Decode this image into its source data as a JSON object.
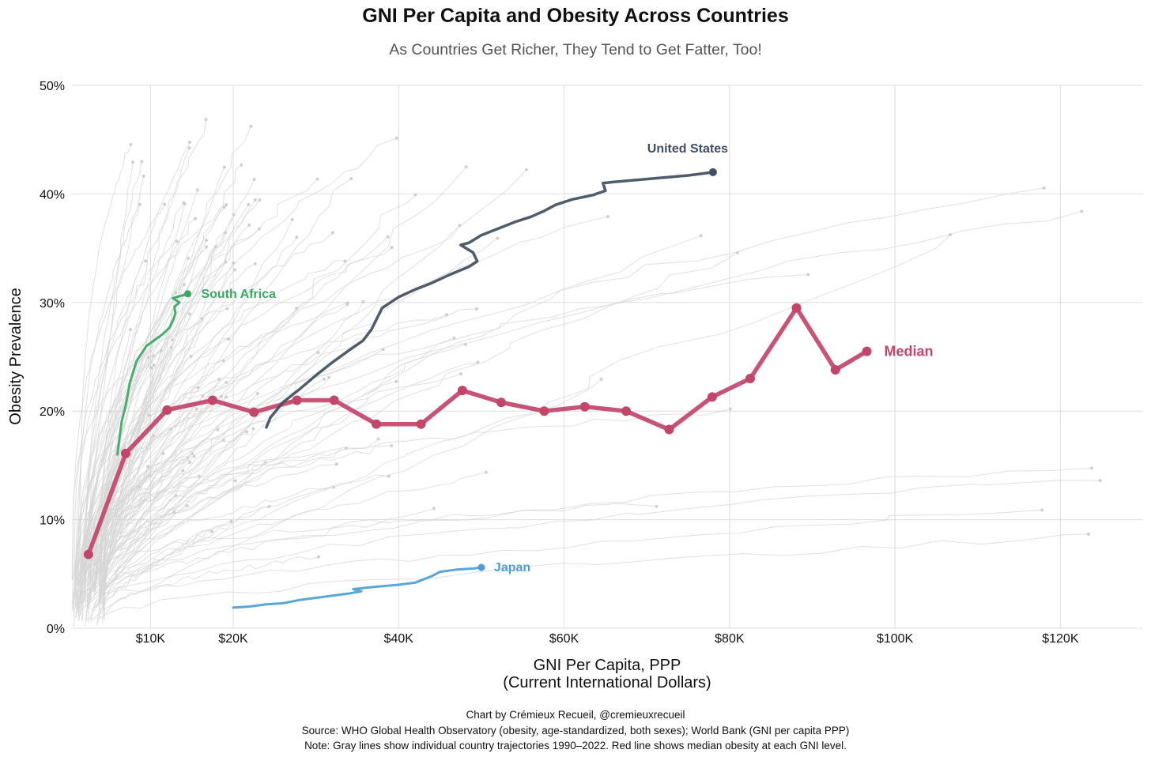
{
  "header": {
    "title": "GNI Per Capita and Obesity Across Countries",
    "subtitle": "As Countries Get Richer, They Tend to Get Fatter, Too!"
  },
  "footer": {
    "credit": "Chart by Crémieux Recueil, @cremieuxrecueil",
    "source": "Source: WHO Global Health Observatory (obesity, age-standardized, both sexes); World Bank (GNI per capita PPP)",
    "note": "Note: Gray lines show individual country trajectories 1990–2022. Red line shows median obesity at each GNI level."
  },
  "colors": {
    "median": "#c2456a",
    "united_states": "#3f4e60",
    "south_africa": "#3aa864",
    "japan": "#4a9fd4",
    "background_lines": "#d6d6d6",
    "grid": "#dddddd"
  },
  "chart_data": {
    "type": "line",
    "xlabel": "GNI Per Capita, PPP",
    "xlabel2": "(Current International Dollars)",
    "ylabel": "Obesity Prevalence",
    "xlim": [
      500,
      130000
    ],
    "ylim": [
      0,
      0.5
    ],
    "x_ticks": [
      10000,
      20000,
      40000,
      60000,
      80000,
      100000,
      120000
    ],
    "x_tick_labels": [
      "$10K",
      "$20K",
      "$40K",
      "$60K",
      "$80K",
      "$100K",
      "$120K"
    ],
    "y_ticks": [
      0,
      0.1,
      0.2,
      0.3,
      0.4,
      0.5
    ],
    "y_tick_labels": [
      "0%",
      "10%",
      "20%",
      "30%",
      "40%",
      "50%"
    ],
    "grid": true,
    "series": [
      {
        "name": "Median",
        "label": "Median",
        "x": [
          2500,
          7000,
          12000,
          17500,
          22500,
          27700,
          32200,
          37300,
          42700,
          47700,
          52400,
          57600,
          62500,
          67500,
          72700,
          77900,
          82500,
          88100,
          92800,
          96600
        ],
        "y": [
          0.068,
          0.161,
          0.201,
          0.21,
          0.199,
          0.21,
          0.21,
          0.188,
          0.188,
          0.219,
          0.208,
          0.2,
          0.204,
          0.2,
          0.183,
          0.213,
          0.23,
          0.295,
          0.238,
          0.255
        ]
      },
      {
        "name": "United States",
        "label": "United States",
        "x": [
          24000,
          24500,
          26000,
          28000,
          30000,
          32000,
          34000,
          35700,
          36700,
          38000,
          40000,
          42000,
          44000,
          46000,
          48500,
          49500,
          49000,
          47500,
          48500,
          50000,
          52000,
          54000,
          56000,
          57500,
          59000,
          61000,
          63500,
          65000,
          64700,
          66000,
          69000,
          72000,
          75000,
          78000
        ],
        "y": [
          0.185,
          0.194,
          0.208,
          0.22,
          0.233,
          0.245,
          0.256,
          0.265,
          0.275,
          0.295,
          0.305,
          0.312,
          0.318,
          0.325,
          0.333,
          0.338,
          0.346,
          0.353,
          0.355,
          0.362,
          0.368,
          0.374,
          0.379,
          0.384,
          0.39,
          0.395,
          0.399,
          0.403,
          0.41,
          0.411,
          0.413,
          0.415,
          0.417,
          0.42
        ]
      },
      {
        "name": "South Africa",
        "label": "South Africa",
        "x": [
          6000,
          6200,
          6500,
          7000,
          7500,
          8300,
          9500,
          11500,
          12300,
          12800,
          13000,
          12900,
          13500,
          12700,
          14500
        ],
        "y": [
          0.16,
          0.172,
          0.19,
          0.205,
          0.226,
          0.246,
          0.26,
          0.271,
          0.277,
          0.285,
          0.29,
          0.296,
          0.3,
          0.304,
          0.308
        ]
      },
      {
        "name": "Japan",
        "label": "Japan",
        "x": [
          20000,
          22000,
          24000,
          26000,
          28000,
          30000,
          32000,
          34000,
          35500,
          34500,
          37000,
          40000,
          42000,
          43000,
          44000,
          45000,
          47000,
          49000,
          50000
        ],
        "y": [
          0.019,
          0.02,
          0.022,
          0.023,
          0.026,
          0.028,
          0.03,
          0.032,
          0.034,
          0.036,
          0.038,
          0.04,
          0.042,
          0.045,
          0.048,
          0.052,
          0.054,
          0.055,
          0.056
        ]
      }
    ]
  }
}
